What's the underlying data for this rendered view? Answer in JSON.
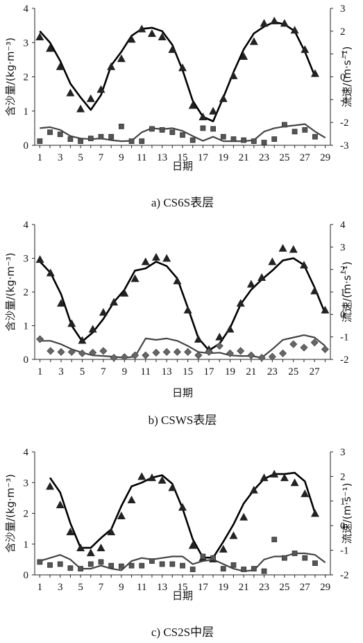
{
  "chart_data": [
    {
      "type": "line",
      "caption": "a) CS6S表层",
      "xlabel": "日期",
      "ylabel": "含沙量/(kg·m⁻³)",
      "y2label": "流速/(m·s⁻¹)",
      "xlim": [
        0.5,
        29.5
      ],
      "xticks": [
        1,
        3,
        5,
        7,
        9,
        11,
        13,
        15,
        17,
        19,
        21,
        23,
        25,
        27,
        29
      ],
      "ylim": [
        0,
        4
      ],
      "yticks": [
        0,
        1,
        2,
        3,
        4
      ],
      "y2lim": [
        -3,
        3
      ],
      "y2ticks": [
        -3,
        -2,
        -1,
        0,
        1,
        2,
        3
      ],
      "series": [
        {
          "kind": "line",
          "axis": "right",
          "x": [
            1,
            2,
            3,
            4,
            5,
            6,
            7,
            8,
            9,
            10,
            11,
            12,
            13,
            14,
            15,
            16,
            17,
            18,
            19,
            20,
            21,
            22,
            23,
            24,
            25,
            26,
            27,
            28
          ],
          "y": [
            2.0,
            1.5,
            0.7,
            -0.3,
            -0.9,
            -1.45,
            -0.8,
            0.5,
            1.1,
            1.8,
            2.1,
            2.15,
            2.0,
            1.4,
            0.3,
            -1.05,
            -1.75,
            -1.95,
            -0.9,
            0.2,
            1.2,
            1.9,
            2.2,
            2.4,
            2.3,
            2.0,
            1.1,
            0.0
          ]
        },
        {
          "kind": "triangle",
          "axis": "right",
          "x": [
            1,
            2,
            3,
            4,
            5,
            6,
            7,
            8,
            9,
            10,
            11,
            12,
            13,
            14,
            15,
            16,
            17,
            18,
            19,
            20,
            21,
            22,
            23,
            24,
            25,
            26,
            27,
            28
          ],
          "y": [
            1.75,
            1.25,
            0.45,
            -0.7,
            -1.4,
            -0.95,
            -0.55,
            0.45,
            0.8,
            1.65,
            2.1,
            1.9,
            1.75,
            1.2,
            0.4,
            -1.25,
            -1.75,
            -1.5,
            -0.95,
            0.05,
            0.9,
            1.55,
            2.35,
            2.45,
            2.35,
            2.05,
            1.2,
            0.15
          ]
        },
        {
          "kind": "line",
          "axis": "left",
          "x": [
            1,
            2,
            3,
            4,
            5,
            6,
            7,
            8,
            9,
            10,
            11,
            12,
            13,
            14,
            15,
            16,
            17,
            18,
            19,
            20,
            21,
            22,
            23,
            24,
            25,
            26,
            27,
            28,
            29
          ],
          "y": [
            0.5,
            0.53,
            0.45,
            0.27,
            0.2,
            0.18,
            0.2,
            0.15,
            0.12,
            0.13,
            0.38,
            0.5,
            0.47,
            0.5,
            0.42,
            0.27,
            0.13,
            0.25,
            0.12,
            0.12,
            0.12,
            0.15,
            0.4,
            0.5,
            0.55,
            0.58,
            0.62,
            0.4,
            0.22
          ]
        },
        {
          "kind": "square",
          "axis": "left",
          "x": [
            1,
            2,
            3,
            4,
            5,
            6,
            7,
            8,
            9,
            10,
            11,
            12,
            13,
            14,
            15,
            16,
            17,
            18,
            19,
            20,
            21,
            22,
            23,
            24,
            25,
            26,
            27,
            28
          ],
          "y": [
            0.12,
            0.38,
            0.32,
            0.18,
            0.12,
            0.2,
            0.25,
            0.25,
            0.55,
            0.12,
            0.12,
            0.48,
            0.45,
            0.38,
            0.3,
            0.15,
            0.5,
            0.48,
            0.25,
            0.18,
            0.15,
            0.12,
            0.08,
            0.18,
            0.6,
            0.4,
            0.45,
            0.25
          ]
        }
      ]
    },
    {
      "type": "line",
      "caption": "b) CSWS表层",
      "xlabel": "日期",
      "ylabel": "含沙量/(kg·m⁻³)",
      "y2label": "流速/(m·s⁻¹)",
      "xlim": [
        0.5,
        28.5
      ],
      "xticks": [
        1,
        3,
        5,
        7,
        9,
        11,
        13,
        15,
        17,
        19,
        21,
        23,
        25,
        27
      ],
      "ylim": [
        0,
        4
      ],
      "yticks": [
        0,
        1,
        2,
        3,
        4
      ],
      "y2lim": [
        -2,
        4
      ],
      "y2ticks": [
        -2,
        -1,
        0,
        1,
        2,
        3,
        4
      ],
      "series": [
        {
          "kind": "line",
          "axis": "right",
          "x": [
            1,
            2,
            3,
            4,
            5,
            6,
            7,
            8,
            9,
            10,
            11,
            12,
            13,
            14,
            15,
            16,
            17,
            18,
            19,
            20,
            21,
            22,
            23,
            24,
            25,
            26,
            27,
            28
          ],
          "y": [
            2.35,
            1.85,
            0.9,
            -0.5,
            -1.2,
            -0.8,
            -0.2,
            0.55,
            1.1,
            1.95,
            2.05,
            2.35,
            2.15,
            1.6,
            0.3,
            -1.05,
            -1.6,
            -1.3,
            -0.6,
            0.45,
            1.1,
            1.55,
            1.95,
            2.4,
            2.5,
            2.2,
            1.2,
            0.05
          ]
        },
        {
          "kind": "triangle",
          "axis": "right",
          "x": [
            1,
            2,
            3,
            4,
            5,
            6,
            7,
            8,
            9,
            10,
            11,
            12,
            13,
            14,
            15,
            16,
            17,
            18,
            19,
            20,
            21,
            22,
            23,
            24,
            25,
            26,
            27,
            28
          ],
          "y": [
            2.45,
            1.85,
            0.5,
            -0.4,
            -1.15,
            -0.65,
            0.1,
            0.55,
            0.95,
            1.6,
            2.35,
            2.55,
            2.5,
            1.5,
            0.2,
            -1.1,
            -1.55,
            -1.0,
            -0.65,
            0.5,
            1.35,
            1.65,
            2.35,
            2.95,
            2.9,
            2.2,
            1.05,
            0.2
          ]
        },
        {
          "kind": "line",
          "axis": "left",
          "x": [
            1,
            2,
            3,
            4,
            5,
            6,
            7,
            8,
            9,
            10,
            11,
            12,
            13,
            14,
            15,
            16,
            17,
            18,
            19,
            20,
            21,
            22,
            23,
            24,
            25,
            26,
            27,
            28
          ],
          "y": [
            0.55,
            0.55,
            0.45,
            0.3,
            0.2,
            0.12,
            0.1,
            0.08,
            0.05,
            0.08,
            0.62,
            0.58,
            0.62,
            0.55,
            0.4,
            0.22,
            0.18,
            0.2,
            0.12,
            0.1,
            0.1,
            0.05,
            0.3,
            0.58,
            0.65,
            0.72,
            0.65,
            0.4
          ]
        },
        {
          "kind": "diamond",
          "axis": "left",
          "x": [
            1,
            2,
            3,
            4,
            5,
            6,
            7,
            8,
            9,
            10,
            11,
            12,
            13,
            14,
            15,
            16,
            17,
            18,
            19,
            20,
            21,
            22,
            23,
            24,
            25,
            26,
            27,
            28
          ],
          "y": [
            0.6,
            0.25,
            0.22,
            0.22,
            0.18,
            0.2,
            0.25,
            0.05,
            0.07,
            0.12,
            0.12,
            0.2,
            0.22,
            0.22,
            0.22,
            0.12,
            0.22,
            0.4,
            0.18,
            0.25,
            0.12,
            0.05,
            0.08,
            0.18,
            0.45,
            0.35,
            0.5,
            0.3
          ]
        }
      ]
    },
    {
      "type": "line",
      "caption": "c) CS2S中层",
      "xlabel": "日期",
      "ylabel": "含沙量/(kg·m⁻³)",
      "y2label": "流速/(m·s⁻¹)",
      "xlim": [
        0.5,
        29.5
      ],
      "xticks": [
        1,
        3,
        5,
        7,
        9,
        11,
        13,
        15,
        17,
        19,
        21,
        23,
        25,
        27,
        29
      ],
      "ylim": [
        0,
        4
      ],
      "yticks": [
        0,
        1,
        2,
        3,
        4
      ],
      "y2lim": [
        -2,
        3
      ],
      "y2ticks": [
        -2,
        -1,
        0,
        1,
        2,
        3
      ],
      "series": [
        {
          "kind": "line",
          "axis": "right",
          "x": [
            2,
            3,
            4,
            5,
            6,
            7,
            8,
            9,
            10,
            11,
            12,
            13,
            14,
            15,
            16,
            17,
            18,
            19,
            20,
            21,
            22,
            23,
            24,
            25,
            26,
            27,
            28
          ],
          "y": [
            1.95,
            1.35,
            0.1,
            -0.9,
            -0.9,
            -0.5,
            -0.15,
            0.8,
            1.6,
            1.75,
            1.95,
            2.05,
            1.7,
            0.7,
            -0.55,
            -1.3,
            -1.3,
            -0.65,
            0.05,
            0.9,
            1.45,
            1.9,
            2.1,
            2.1,
            2.15,
            1.8,
            0.5
          ]
        },
        {
          "kind": "triangle",
          "axis": "right",
          "x": [
            2,
            3,
            4,
            5,
            6,
            7,
            8,
            9,
            10,
            11,
            12,
            13,
            14,
            15,
            16,
            17,
            18,
            19,
            20,
            21,
            22,
            23,
            24,
            25,
            26,
            27,
            28
          ],
          "y": [
            1.6,
            0.85,
            -0.25,
            -0.9,
            -1.1,
            -0.9,
            -0.25,
            0.4,
            1.05,
            2.0,
            1.95,
            1.85,
            1.55,
            0.75,
            -0.8,
            -1.3,
            -1.35,
            -0.95,
            -0.4,
            0.35,
            1.45,
            1.95,
            2.1,
            1.95,
            1.75,
            1.3,
            0.5
          ]
        },
        {
          "kind": "line",
          "axis": "left",
          "x": [
            1,
            2,
            3,
            4,
            5,
            6,
            7,
            8,
            9,
            10,
            11,
            12,
            13,
            14,
            15,
            16,
            17,
            18,
            19,
            20,
            21,
            22,
            23,
            24,
            25,
            26,
            27,
            28,
            29
          ],
          "y": [
            0.45,
            0.55,
            0.65,
            0.5,
            0.2,
            0.2,
            0.3,
            0.2,
            0.15,
            0.45,
            0.55,
            0.5,
            0.55,
            0.6,
            0.6,
            0.35,
            0.45,
            0.5,
            0.35,
            0.2,
            0.12,
            0.15,
            0.5,
            0.6,
            0.6,
            0.7,
            0.7,
            0.65,
            0.4
          ]
        },
        {
          "kind": "square",
          "axis": "left",
          "x": [
            1,
            2,
            3,
            4,
            5,
            6,
            7,
            8,
            9,
            10,
            11,
            12,
            13,
            14,
            15,
            16,
            17,
            18,
            19,
            20,
            21,
            22,
            23,
            24,
            25,
            26,
            27,
            28
          ],
          "y": [
            0.42,
            0.32,
            0.35,
            0.22,
            0.2,
            0.35,
            0.42,
            0.3,
            0.28,
            0.3,
            0.3,
            0.45,
            0.35,
            0.35,
            0.3,
            0.18,
            0.6,
            0.55,
            0.2,
            0.32,
            0.18,
            0.2,
            0.12,
            1.15,
            0.55,
            0.7,
            0.55,
            0.38
          ]
        }
      ]
    }
  ]
}
